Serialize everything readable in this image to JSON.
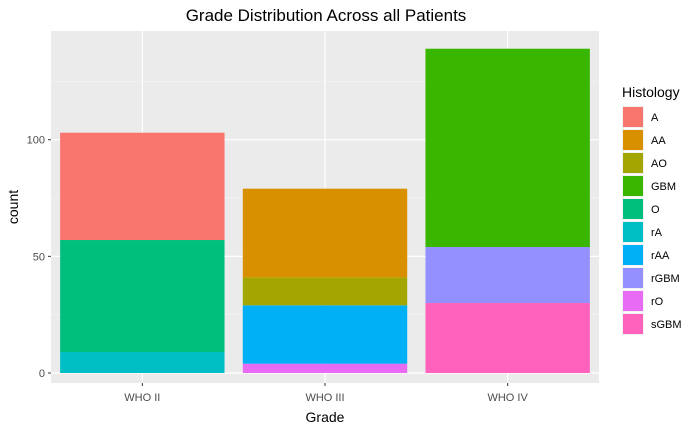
{
  "chart_data": {
    "type": "bar",
    "stacked": true,
    "title": "Grade Distribution Across all Patients",
    "xlabel": "Grade",
    "ylabel": "count",
    "categories": [
      "WHO II",
      "WHO III",
      "WHO IV"
    ],
    "ylim": [
      0,
      148
    ],
    "yticks": [
      0,
      50,
      100
    ],
    "grid": true,
    "legend": {
      "title": "Histology",
      "position": "right"
    },
    "stack_order_bottom_to_top": [
      "sGBM",
      "rO",
      "rGBM",
      "rAA",
      "rA",
      "O",
      "GBM",
      "AO",
      "AA",
      "A"
    ],
    "series": [
      {
        "name": "A",
        "color": "#F8766D",
        "values": [
          46,
          0,
          0
        ]
      },
      {
        "name": "AA",
        "color": "#D89000",
        "values": [
          0,
          38,
          0
        ]
      },
      {
        "name": "AO",
        "color": "#A3A500",
        "values": [
          0,
          12,
          0
        ]
      },
      {
        "name": "GBM",
        "color": "#39B600",
        "values": [
          0,
          0,
          85
        ]
      },
      {
        "name": "O",
        "color": "#00BF7D",
        "values": [
          48,
          0,
          0
        ]
      },
      {
        "name": "rA",
        "color": "#00BFC4",
        "values": [
          9,
          0,
          0
        ]
      },
      {
        "name": "rAA",
        "color": "#00B0F6",
        "values": [
          0,
          25,
          0
        ]
      },
      {
        "name": "rGBM",
        "color": "#9590FF",
        "values": [
          0,
          0,
          24
        ]
      },
      {
        "name": "rO",
        "color": "#E76BF3",
        "values": [
          0,
          4,
          0
        ]
      },
      {
        "name": "sGBM",
        "color": "#FF62BC",
        "values": [
          0,
          0,
          30
        ]
      }
    ]
  }
}
